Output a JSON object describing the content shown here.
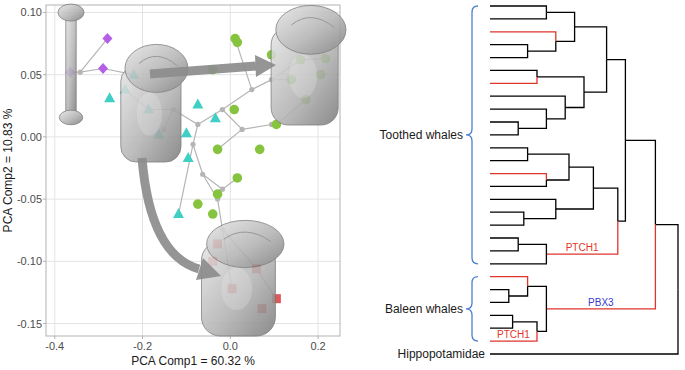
{
  "chart_data": {
    "type": "scatter",
    "xlabel": "PCA Comp1 = 60.32 %",
    "ylabel": "PCA Comp2 = 10.83 %",
    "xlim": [
      -0.42,
      0.25
    ],
    "ylim": [
      -0.16,
      0.106
    ],
    "xticks": [
      -0.4,
      -0.2,
      {
        "value": 0,
        "label": "0.0"
      },
      0.2
    ],
    "yticks": [
      {
        "value": 0.1,
        "label": "0.10"
      },
      0.05,
      {
        "value": 0,
        "label": "0.00"
      },
      -0.05,
      {
        "value": -0.1,
        "label": "-0.10"
      },
      -0.15
    ],
    "grid": true,
    "series": [
      {
        "type": "line",
        "color": "#b5b5b5",
        "x": [
          -0.365,
          -0.342,
          -0.29,
          -0.22,
          null,
          -0.342,
          -0.28,
          null,
          -0.24,
          -0.186,
          -0.13,
          -0.074,
          -0.018,
          0.049,
          0.094,
          0.139,
          null,
          0.049,
          0.011,
          null,
          0.094,
          0.16,
          0.217,
          null,
          -0.13,
          -0.152,
          -0.163,
          null,
          -0.074,
          -0.085,
          -0.063,
          -0.029,
          -0.018,
          0.004,
          null,
          -0.018,
          0.06,
          0.105,
          null,
          -0.085,
          -0.118,
          null,
          -0.063,
          -0.018,
          0.016,
          null,
          -0.018,
          0.027,
          0.094,
          0.105,
          0.172,
          null,
          0.027,
          -0.029
        ],
        "values": [
          0.052,
          0.052,
          0.055,
          0.05,
          null,
          0.052,
          0.079,
          null,
          0.038,
          0.022,
          0.022,
          0.01,
          0.022,
          0.038,
          0.046,
          0.046,
          null,
          0.038,
          0.079,
          null,
          0.046,
          0.062,
          0.063,
          null,
          0.022,
          0.006,
          0.002,
          null,
          0.01,
          -0.006,
          -0.03,
          -0.05,
          -0.074,
          -0.122,
          null,
          -0.074,
          -0.106,
          -0.13,
          null,
          -0.006,
          -0.062,
          null,
          -0.03,
          -0.042,
          -0.033,
          null,
          0.022,
          0.006,
          0.01,
          0.01,
          0.03,
          null,
          0.006,
          -0.01
        ]
      },
      {
        "type": "scatter",
        "color": "#b5b5b5",
        "marker": "point",
        "x": [
          -0.342,
          -0.13,
          -0.152,
          -0.085,
          -0.063,
          -0.029,
          -0.018,
          -0.018,
          -0.074,
          -0.018,
          0.049,
          0.094,
          0.027,
          0.094
        ],
        "values": [
          0.052,
          0.022,
          0.006,
          -0.006,
          -0.03,
          -0.05,
          -0.074,
          -0.042,
          0.01,
          0.022,
          0.038,
          0.046,
          0.006,
          0.01
        ]
      },
      {
        "type": "scatter",
        "color": "#b55ee8",
        "marker": "diamond",
        "x": [
          -0.28,
          -0.365,
          -0.29
        ],
        "values": [
          0.079,
          0.052,
          0.055
        ]
      },
      {
        "type": "scatter",
        "color": "#3fcfc4",
        "marker": "triangle",
        "x": [
          -0.22,
          -0.24,
          -0.186,
          -0.163,
          -0.096,
          -0.1,
          -0.034,
          -0.074,
          -0.118,
          -0.275
        ],
        "values": [
          0.05,
          0.038,
          0.022,
          0.002,
          -0.017,
          0.003,
          0.015,
          0.026,
          -0.062,
          0.031
        ]
      },
      {
        "type": "scatter",
        "color": "#86c440",
        "marker": "circle",
        "x": [
          0.011,
          0.016,
          -0.04,
          0.094,
          0.16,
          0.139,
          0.009,
          -0.029,
          -0.029,
          0.016,
          0.067,
          0.105,
          0.172,
          0.206,
          0.217,
          -0.074,
          -0.04
        ],
        "values": [
          0.079,
          0.076,
          0.054,
          0.066,
          0.062,
          0.046,
          0.022,
          -0.01,
          -0.046,
          -0.033,
          -0.01,
          0.01,
          0.03,
          0.05,
          0.063,
          -0.054,
          -0.062
        ]
      },
      {
        "type": "scatter",
        "color": "#e05757",
        "marker": "square",
        "x": [
          -0.029,
          0.06,
          0.105,
          0.004,
          0.072,
          -0.04
        ],
        "values": [
          -0.086,
          -0.106,
          -0.13,
          -0.122,
          -0.138,
          -0.1
        ]
      }
    ]
  },
  "tree": {
    "age": 1.0,
    "children": [
      {
        "age": 0.88,
        "color": "#000000",
        "children": [
          {
            "age": 0.72,
            "color": "#000000",
            "name": "Toothed whales",
            "children": [
              {
                "age": 0.62,
                "color": "#000000",
                "children": [
                  {
                    "age": 0.45,
                    "color": "#000000",
                    "children": [
                      {
                        "age": 0.3,
                        "color": "#000000",
                        "children": [
                          {
                            "color": "#000000"
                          },
                          {
                            "color": "#000000"
                          }
                        ]
                      },
                      {
                        "age": 0.35,
                        "color": "#000000",
                        "children": [
                          {
                            "color": "#e0352b"
                          },
                          {
                            "age": 0.2,
                            "color": "#000000",
                            "children": [
                              {
                                "color": "#000000"
                              },
                              {
                                "color": "#000000"
                              }
                            ]
                          }
                        ]
                      }
                    ]
                  },
                  {
                    "age": 0.5,
                    "color": "#000000",
                    "children": [
                      {
                        "age": 0.25,
                        "color": "#000000",
                        "children": [
                          {
                            "color": "#000000"
                          },
                          {
                            "color": "#e0352b"
                          }
                        ]
                      },
                      {
                        "age": 0.4,
                        "color": "#000000",
                        "children": [
                          {
                            "color": "#000000"
                          },
                          {
                            "age": 0.3,
                            "color": "#000000",
                            "children": [
                              {
                                "color": "#000000"
                              },
                              {
                                "age": 0.15,
                                "color": "#000000",
                                "children": [
                                  {
                                    "color": "#000000"
                                  },
                                  {
                                    "color": "#000000"
                                  }
                                ]
                              }
                            ]
                          }
                        ]
                      }
                    ]
                  }
                ]
              },
              {
                "age": 0.68,
                "color": "#000000",
                "children": [
                  {
                    "age": 0.55,
                    "color": "#000000",
                    "children": [
                      {
                        "age": 0.42,
                        "color": "#000000",
                        "children": [
                          {
                            "age": 0.2,
                            "color": "#000000",
                            "children": [
                              {
                                "color": "#000000"
                              },
                              {
                                "color": "#000000"
                              }
                            ]
                          },
                          {
                            "age": 0.3,
                            "color": "#000000",
                            "children": [
                              {
                                "color": "#e0352b"
                              },
                              {
                                "color": "#000000"
                              }
                            ]
                          }
                        ]
                      },
                      {
                        "age": 0.35,
                        "color": "#000000",
                        "children": [
                          {
                            "color": "#000000"
                          },
                          {
                            "age": 0.18,
                            "color": "#000000",
                            "children": [
                              {
                                "color": "#000000"
                              },
                              {
                                "color": "#000000"
                              }
                            ]
                          }
                        ]
                      }
                    ]
                  },
                  {
                    "age": 0.3,
                    "color": "#e0352b",
                    "label": {
                      "text": "PTCH1",
                      "color": "#e0352b"
                    },
                    "children": [
                      {
                        "age": 0.15,
                        "color": "#000000",
                        "children": [
                          {
                            "color": "#000000"
                          },
                          {
                            "color": "#000000"
                          }
                        ]
                      },
                      {
                        "color": "#000000"
                      }
                    ]
                  }
                ]
              }
            ]
          },
          {
            "age": 0.3,
            "color": "#e0352b",
            "name": "Baleen whales",
            "label": {
              "text": "PBX3",
              "color": "#3a3acc"
            },
            "children": [
              {
                "age": 0.2,
                "color": "#000000",
                "children": [
                  {
                    "color": "#e0352b"
                  },
                  {
                    "age": 0.1,
                    "color": "#000000",
                    "children": [
                      {
                        "color": "#000000"
                      },
                      {
                        "color": "#000000"
                      }
                    ]
                  }
                ]
              },
              {
                "age": 0.25,
                "color": "#000000",
                "children": [
                  {
                    "age": 0.12,
                    "color": "#000000",
                    "children": [
                      {
                        "color": "#000000"
                      },
                      {
                        "color": "#000000"
                      }
                    ]
                  },
                  {
                    "color": "#e0352b",
                    "label": {
                      "text": "PTCH1",
                      "color": "#e0352b"
                    }
                  }
                ]
              }
            ]
          }
        ]
      },
      {
        "color": "#000000",
        "name": "Hippopotamidae"
      }
    ]
  }
}
